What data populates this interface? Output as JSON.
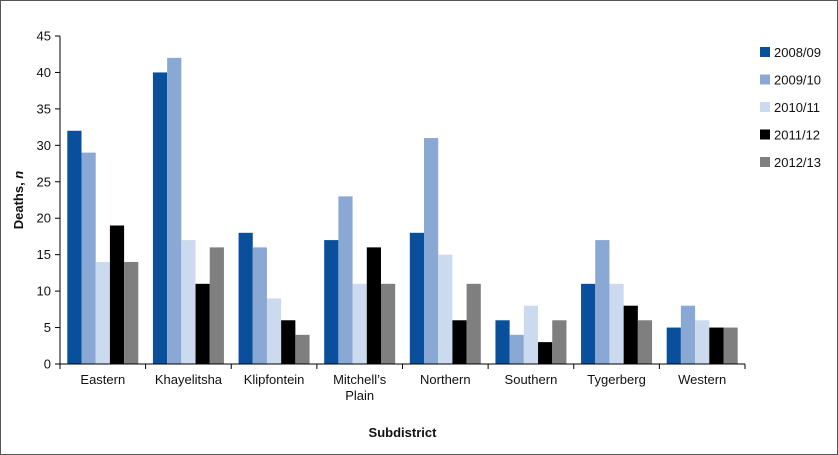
{
  "chart_data": {
    "type": "bar",
    "xlabel": "Subdistrict",
    "ylabel": "Deaths, n",
    "ylabel_parts": {
      "main": "Deaths, ",
      "italic": "n"
    },
    "ylim": [
      0,
      45
    ],
    "ytick_step": 5,
    "yticks": [
      "0",
      "5",
      "10",
      "15",
      "20",
      "25",
      "30",
      "35",
      "40",
      "45"
    ],
    "grid": false,
    "legend_position": "right",
    "categories": [
      "Eastern",
      "Khayelitsha",
      "Klipfontein",
      "Mitchell's Plain",
      "Northern",
      "Southern",
      "Tygerberg",
      "Western"
    ],
    "category_label_lines": [
      [
        "Eastern"
      ],
      [
        "Khayelitsha"
      ],
      [
        "Klipfontein"
      ],
      [
        "Mitchell’s",
        "Plain"
      ],
      [
        "Northern"
      ],
      [
        "Southern"
      ],
      [
        "Tygerberg"
      ],
      [
        "Western"
      ]
    ],
    "series": [
      {
        "name": "2008/09",
        "color": "#0a4f9c",
        "values": [
          32,
          40,
          18,
          17,
          18,
          6,
          11,
          5
        ]
      },
      {
        "name": "2009/10",
        "color": "#8aa8d4",
        "values": [
          29,
          42,
          16,
          23,
          31,
          4,
          17,
          8
        ]
      },
      {
        "name": "2010/11",
        "color": "#ccdaf0",
        "values": [
          14,
          17,
          9,
          11,
          15,
          8,
          11,
          6
        ]
      },
      {
        "name": "2011/12",
        "color": "#000000",
        "values": [
          19,
          11,
          6,
          16,
          6,
          3,
          8,
          5
        ]
      },
      {
        "name": "2012/13",
        "color": "#7f7f7f",
        "values": [
          14,
          16,
          4,
          11,
          11,
          6,
          6,
          5
        ]
      }
    ]
  }
}
